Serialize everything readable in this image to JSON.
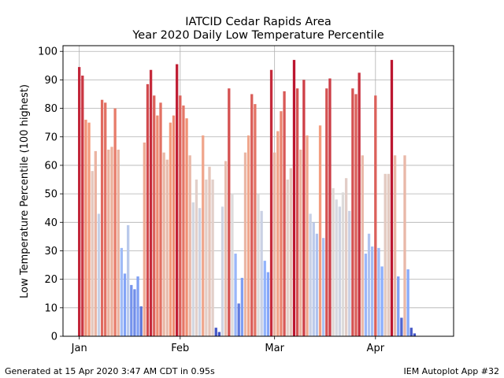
{
  "chart_data": {
    "type": "bar",
    "title": "IATCID Cedar Rapids Area",
    "subtitle": "Year 2020 Daily Low Temperature Percentile",
    "ylabel": "Low Temperature Percentile (100 highest)",
    "xlabel": "",
    "xlim": [
      "2019-12-27",
      "2020-04-25"
    ],
    "ylim": [
      0,
      102
    ],
    "yticks": [
      0,
      10,
      20,
      30,
      40,
      50,
      60,
      70,
      80,
      90,
      100
    ],
    "xticks": [
      {
        "date": "2020-01-01",
        "label": "Jan"
      },
      {
        "date": "2020-02-01",
        "label": "Feb"
      },
      {
        "date": "2020-03-01",
        "label": "Mar"
      },
      {
        "date": "2020-04-01",
        "label": "Apr"
      }
    ],
    "grid": true,
    "colormap": "coolwarm",
    "start_date": "2020-01-01",
    "values": [
      94.5,
      91.5,
      76,
      75,
      58,
      65,
      43,
      83,
      82,
      65.5,
      66.5,
      80,
      65.5,
      31,
      22,
      39,
      18,
      16.5,
      21,
      10.5,
      68,
      88.5,
      93.5,
      84.5,
      77.5,
      82,
      64.5,
      62,
      75,
      77.5,
      95.5,
      84.5,
      81,
      76.5,
      63.5,
      47,
      55,
      45,
      70.5,
      55,
      59.5,
      55,
      3,
      1.5,
      45.5,
      61.5,
      87,
      50,
      29,
      11.5,
      20.5,
      64.5,
      70.5,
      85,
      81.5,
      50,
      44,
      26.5,
      22.5,
      93.5,
      64.5,
      72,
      79,
      86,
      55,
      59,
      97,
      87,
      65.5,
      90,
      70.5,
      43,
      40,
      36,
      74,
      34.5,
      87,
      90.5,
      52,
      48,
      45.5,
      50.5,
      55.5,
      44,
      87,
      85,
      92.5,
      63.5,
      29,
      36,
      31.5,
      84.5,
      31,
      24.5,
      57,
      57,
      97,
      63.5,
      21,
      6.5,
      63.5,
      23.5,
      3,
      1
    ]
  },
  "footer": {
    "left": "Generated at 15 Apr 2020 3:47 AM CDT in 0.95s",
    "right": "IEM Autoplot App #32"
  }
}
